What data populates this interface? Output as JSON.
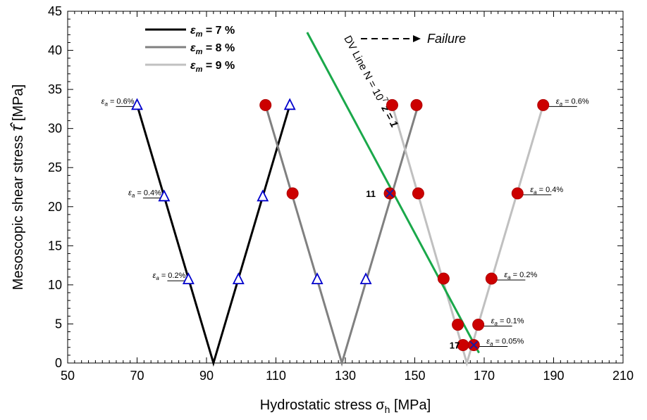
{
  "chart_data": {
    "type": "scatter",
    "xlabel": "Hydrostatic stress",
    "xlabel_symbol": "σ",
    "xlabel_sub": "h",
    "xlabel_unit": "[MPa]",
    "ylabel": "Mesoscopic shear stress",
    "ylabel_symbol": "τ̂",
    "ylabel_unit": "[MPa]",
    "xlim": [
      50,
      210
    ],
    "ylim": [
      0,
      45
    ],
    "xticks": [
      50,
      70,
      90,
      110,
      130,
      150,
      170,
      190,
      210
    ],
    "yticks": [
      0,
      5,
      10,
      15,
      20,
      25,
      30,
      35,
      40,
      45
    ],
    "grid": false,
    "legend": {
      "position": "top-left",
      "entries": [
        {
          "sym": "ε",
          "sub": "m",
          "rest": " = 7 %",
          "color": "#000000"
        },
        {
          "sym": "ε",
          "sub": "m",
          "rest": " = 8 %",
          "color": "#808080"
        },
        {
          "sym": "ε",
          "sub": "m",
          "rest": " = 9 %",
          "color": "#c0c0c0"
        }
      ],
      "failure_label": "Failure"
    },
    "series": [
      {
        "color": "#000000",
        "x": [
          70,
          92,
          114
        ],
        "y": [
          33,
          0,
          33
        ]
      },
      {
        "color": "#808080",
        "x": [
          107,
          129,
          151
        ],
        "y": [
          33,
          0,
          33
        ]
      },
      {
        "color": "#c0c0c0",
        "x": [
          143.5,
          165,
          187
        ],
        "y": [
          33,
          0,
          33
        ]
      }
    ],
    "triangles": [
      {
        "x": 70,
        "y": 33
      },
      {
        "x": 77.8,
        "y": 21.3
      },
      {
        "x": 84.8,
        "y": 10.7
      },
      {
        "x": 99.2,
        "y": 10.7
      },
      {
        "x": 106.2,
        "y": 21.3
      },
      {
        "x": 114,
        "y": 33
      },
      {
        "x": 121.9,
        "y": 10.7
      },
      {
        "x": 135.9,
        "y": 10.7
      }
    ],
    "circles": [
      {
        "x": 107,
        "y": 33
      },
      {
        "x": 114.8,
        "y": 21.7
      },
      {
        "x": 143.5,
        "y": 33
      },
      {
        "x": 150.5,
        "y": 33
      },
      {
        "x": 151,
        "y": 21.7
      },
      {
        "x": 158.3,
        "y": 10.8
      },
      {
        "x": 162.4,
        "y": 4.9
      },
      {
        "x": 163.9,
        "y": 2.3
      },
      {
        "x": 168.3,
        "y": 4.9
      },
      {
        "x": 172.1,
        "y": 10.8
      },
      {
        "x": 179.6,
        "y": 21.7
      },
      {
        "x": 187,
        "y": 33
      }
    ],
    "failure_points": [
      {
        "x": 142.8,
        "y": 21.7,
        "label": "11"
      },
      {
        "x": 167,
        "y": 2.3,
        "label": "17"
      }
    ],
    "dv_line": {
      "x": [
        119,
        168.5
      ],
      "y": [
        42.3,
        1.3
      ],
      "color": "#1aa84a",
      "label": {
        "prefix": "DV Line  N = 10",
        "exp": "7",
        "z": "z = 1"
      }
    },
    "annotations_left": [
      {
        "x": 70,
        "y": 33,
        "sub": "a",
        "value": " = 0.6%"
      },
      {
        "x": 77.8,
        "y": 21.3,
        "sub": "a",
        "value": " = 0.4%"
      },
      {
        "x": 84.8,
        "y": 10.7,
        "sub": "a",
        "value": " = 0.2%"
      }
    ],
    "annotations_right": [
      {
        "x": 187,
        "y": 33,
        "sub": "a",
        "value": " = 0.6%"
      },
      {
        "x": 179.6,
        "y": 21.7,
        "sub": "a",
        "value": " = 0.4%"
      },
      {
        "x": 172.1,
        "y": 10.8,
        "sub": "a",
        "value": " = 0.2%"
      },
      {
        "x": 168.3,
        "y": 4.9,
        "sub": "a",
        "value": " = 0.1%"
      },
      {
        "x": 167,
        "y": 2.3,
        "sub": "a",
        "value": " = 0.05%"
      }
    ]
  }
}
